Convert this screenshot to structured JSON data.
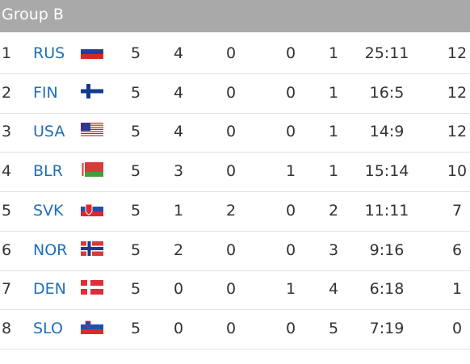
{
  "header": {
    "title": "Group B"
  },
  "table": {
    "rows": [
      [
        1,
        "RUS",
        5,
        4,
        0,
        0,
        1,
        "25:11",
        12
      ],
      [
        2,
        "FIN",
        5,
        4,
        0,
        0,
        1,
        "16:5",
        12
      ],
      [
        3,
        "USA",
        5,
        4,
        0,
        0,
        1,
        "14:9",
        12
      ],
      [
        4,
        "BLR",
        5,
        3,
        0,
        1,
        1,
        "15:14",
        10
      ],
      [
        5,
        "SVK",
        5,
        1,
        2,
        0,
        2,
        "11:11",
        7
      ],
      [
        6,
        "NOR",
        5,
        2,
        0,
        0,
        3,
        "9:16",
        6
      ],
      [
        7,
        "DEN",
        5,
        0,
        0,
        1,
        4,
        "6:18",
        1
      ],
      [
        8,
        "SLO",
        5,
        0,
        0,
        0,
        5,
        "7:19",
        0
      ]
    ]
  }
}
